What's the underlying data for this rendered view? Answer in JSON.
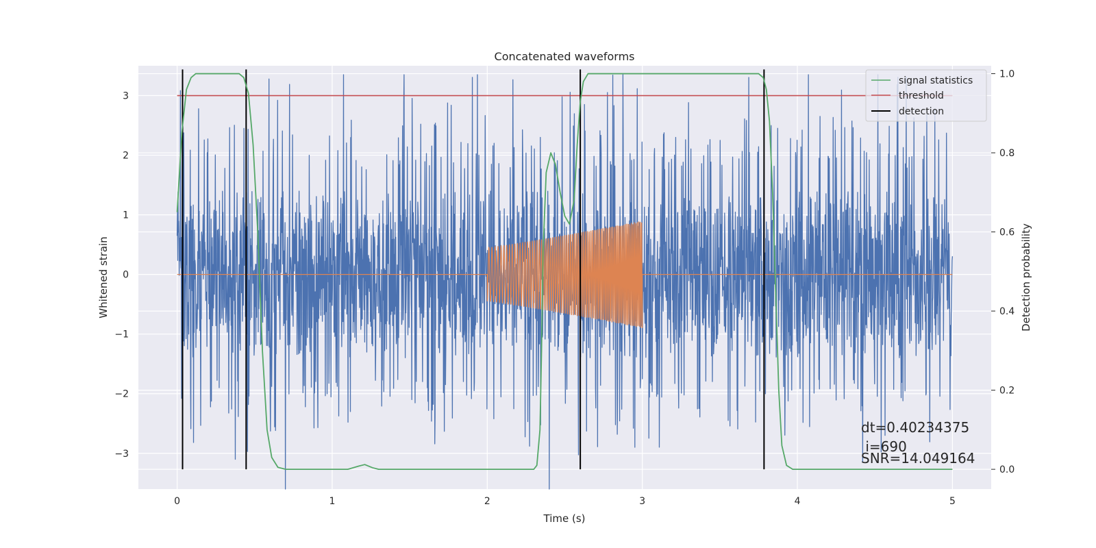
{
  "chart_data": {
    "type": "line",
    "title": "Concatenated waveforms",
    "xlabel": "Time (s)",
    "ylabel": "Whitened strain",
    "y2label": "Detection probability",
    "xlim": [
      -0.25,
      5.25
    ],
    "ylim": [
      -3.6,
      3.5
    ],
    "y2lim": [
      -0.05,
      1.02
    ],
    "xticks": [
      0,
      1,
      2,
      3,
      4,
      5
    ],
    "yticks": [
      -3,
      -2,
      -1,
      0,
      1,
      2,
      3
    ],
    "y2ticks": [
      0.0,
      0.2,
      0.4,
      0.6,
      0.8,
      1.0
    ],
    "ytick_labels": [
      "−3",
      "−2",
      "−1",
      "0",
      "1",
      "2",
      "3"
    ],
    "y2tick_labels": [
      "0.0",
      "0.2",
      "0.4",
      "0.6",
      "0.8",
      "1.0"
    ],
    "grid": true,
    "legend_position": "top-right",
    "series": [
      {
        "name": "",
        "kind": "noise",
        "color": "#4c72b0",
        "x_range": [
          0,
          5
        ],
        "approx_range": [
          -3.6,
          3.35
        ]
      },
      {
        "name": "",
        "kind": "chirp",
        "color": "#dd8452",
        "x_range": [
          2,
          3
        ],
        "amplitude_start": 0.45,
        "amplitude_end": 0.9
      },
      {
        "name": "signal statistics",
        "color": "#55a868",
        "axis": "right",
        "points": [
          [
            0.0,
            0.65
          ],
          [
            0.03,
            0.85
          ],
          [
            0.06,
            0.96
          ],
          [
            0.09,
            0.99
          ],
          [
            0.12,
            1.0
          ],
          [
            0.4,
            1.0
          ],
          [
            0.43,
            0.99
          ],
          [
            0.46,
            0.95
          ],
          [
            0.49,
            0.82
          ],
          [
            0.52,
            0.6
          ],
          [
            0.55,
            0.3
          ],
          [
            0.58,
            0.1
          ],
          [
            0.61,
            0.03
          ],
          [
            0.65,
            0.005
          ],
          [
            0.7,
            0.0
          ],
          [
            1.1,
            0.0
          ],
          [
            1.17,
            0.008
          ],
          [
            1.21,
            0.012
          ],
          [
            1.26,
            0.004
          ],
          [
            1.3,
            0.0
          ],
          [
            2.3,
            0.0
          ],
          [
            2.32,
            0.01
          ],
          [
            2.34,
            0.1
          ],
          [
            2.35,
            0.3
          ],
          [
            2.36,
            0.55
          ],
          [
            2.38,
            0.75
          ],
          [
            2.41,
            0.8
          ],
          [
            2.44,
            0.77
          ],
          [
            2.47,
            0.7
          ],
          [
            2.5,
            0.64
          ],
          [
            2.53,
            0.62
          ],
          [
            2.56,
            0.68
          ],
          [
            2.58,
            0.82
          ],
          [
            2.6,
            0.93
          ],
          [
            2.62,
            0.98
          ],
          [
            2.65,
            1.0
          ],
          [
            3.75,
            1.0
          ],
          [
            3.78,
            0.99
          ],
          [
            3.8,
            0.96
          ],
          [
            3.82,
            0.88
          ],
          [
            3.84,
            0.7
          ],
          [
            3.86,
            0.45
          ],
          [
            3.88,
            0.2
          ],
          [
            3.9,
            0.06
          ],
          [
            3.93,
            0.01
          ],
          [
            3.97,
            0.0
          ],
          [
            5.0,
            0.0
          ]
        ]
      },
      {
        "name": "threshold",
        "color": "#c44e52",
        "points": [
          [
            0,
            3
          ],
          [
            5,
            3
          ]
        ]
      },
      {
        "name": "detection",
        "color": "#000000",
        "axis": "right",
        "vertical_lines_x": [
          0.035,
          0.445,
          2.6,
          3.785
        ],
        "span": [
          0.0,
          1.0
        ]
      }
    ],
    "annotations": [
      "dt=0.40234375",
      " i=690",
      "SNR=14.049164"
    ]
  }
}
